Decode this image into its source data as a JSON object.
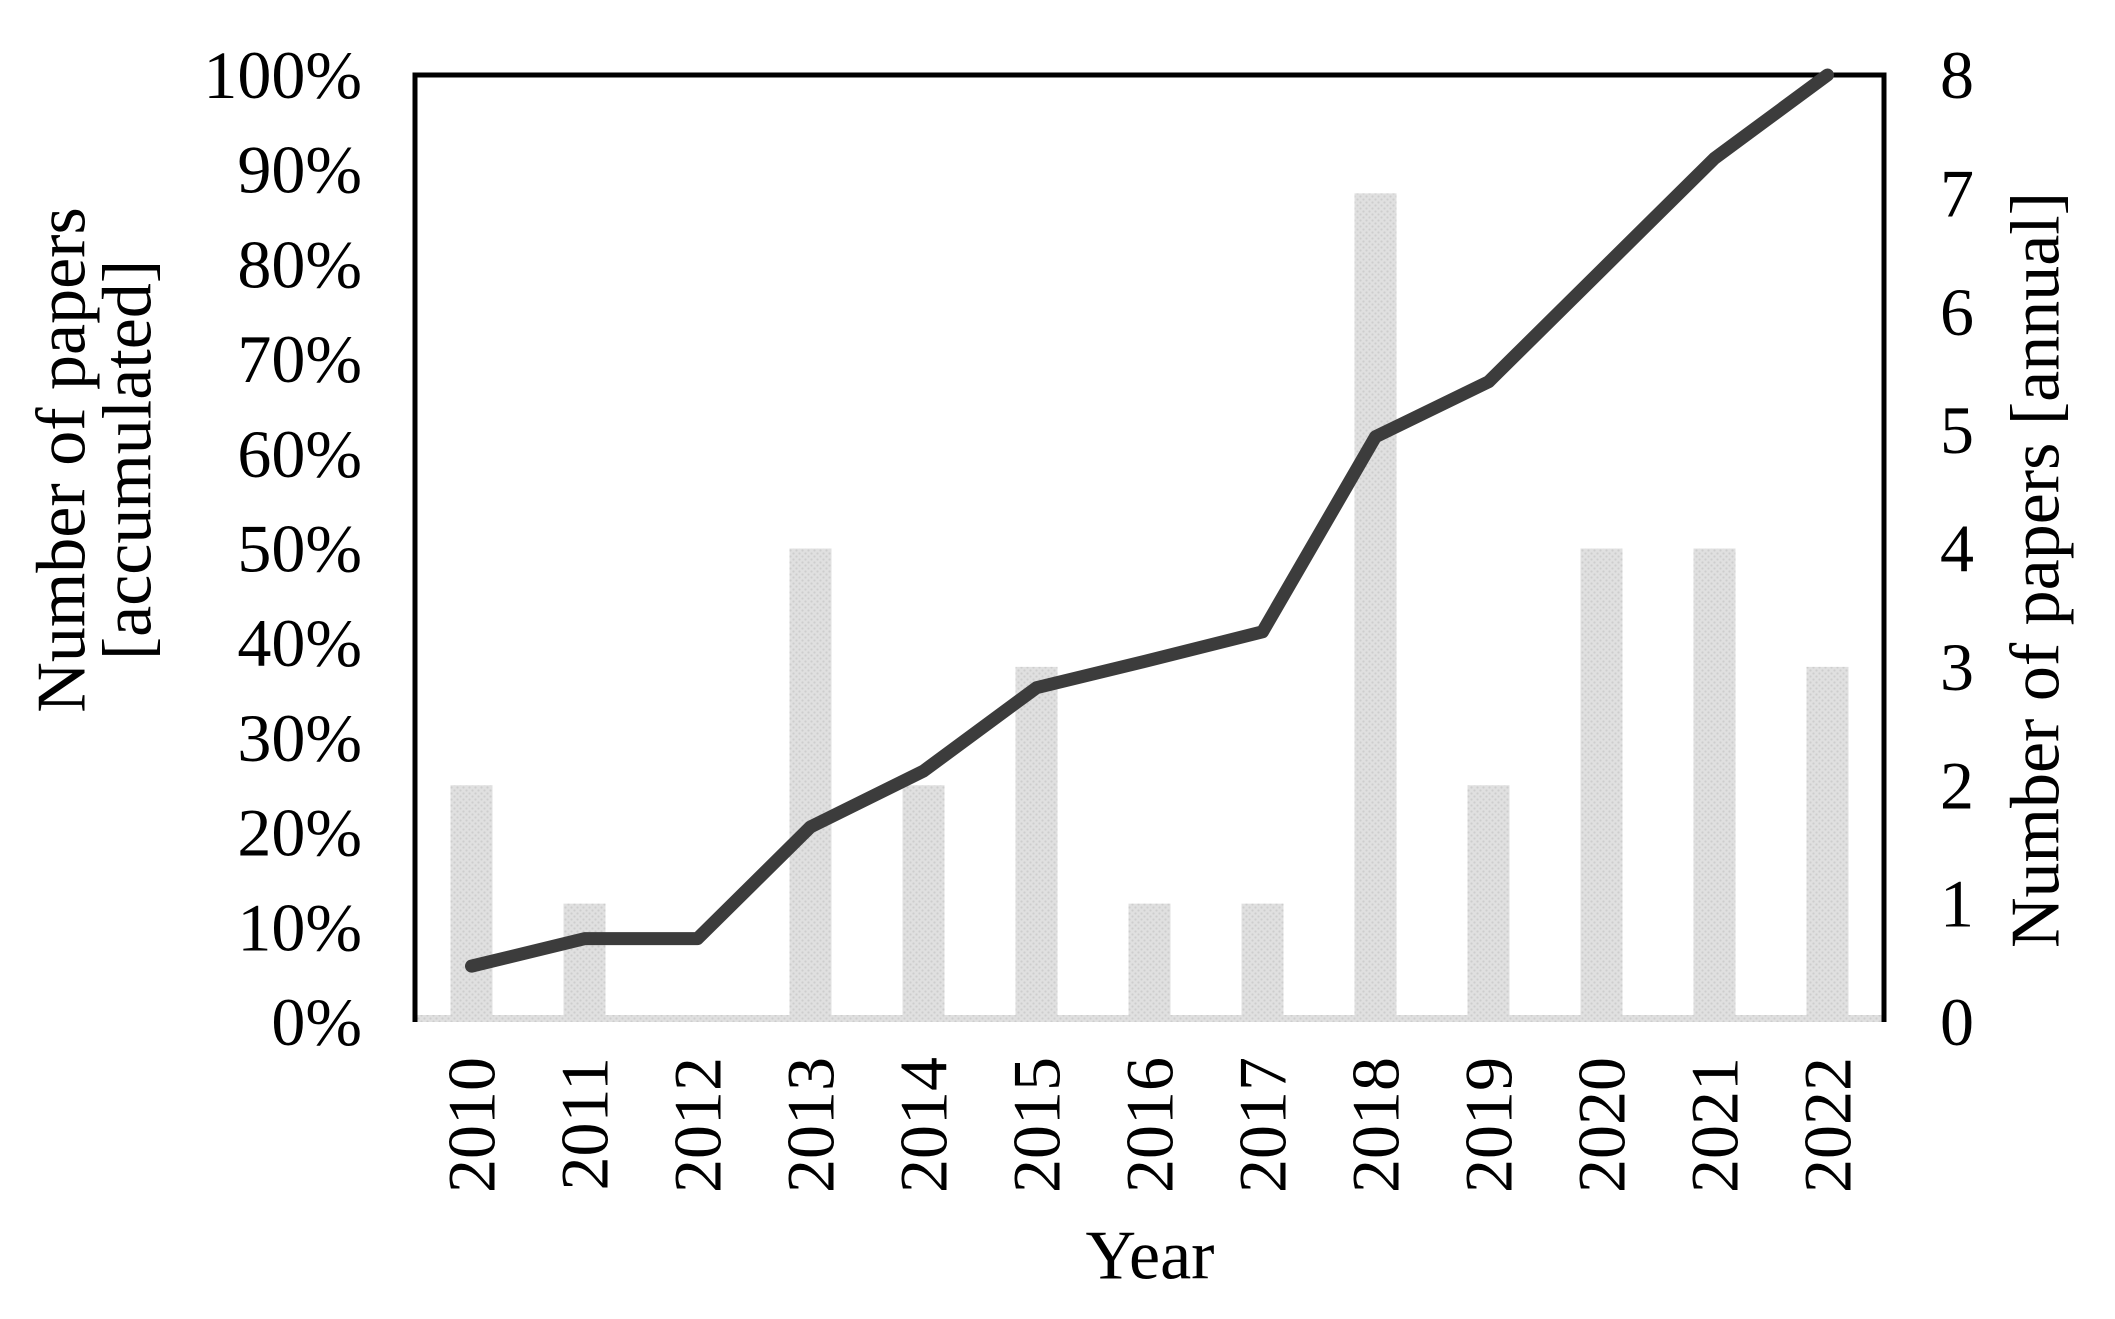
{
  "chart_data": {
    "type": "combo-bar-line",
    "categories": [
      "2010",
      "2011",
      "2012",
      "2013",
      "2014",
      "2015",
      "2016",
      "2017",
      "2018",
      "2019",
      "2020",
      "2021",
      "2022"
    ],
    "series": [
      {
        "name": "Number of papers [annual]",
        "type": "bar",
        "axis": "right",
        "values": [
          2,
          1,
          0,
          4,
          2,
          3,
          1,
          1,
          7,
          2,
          4,
          4,
          3
        ]
      },
      {
        "name": "Number of papers [accumulated]",
        "type": "line",
        "axis": "left",
        "values_percent": [
          5.9,
          8.8,
          8.8,
          20.6,
          26.5,
          35.3,
          38.2,
          41.2,
          61.8,
          67.6,
          79.4,
          91.2,
          100.0
        ]
      }
    ],
    "left_axis": {
      "label_line1": "Number of papers",
      "label_line2": "[accumulated]",
      "tick_labels": [
        "0%",
        "10%",
        "20%",
        "30%",
        "40%",
        "50%",
        "60%",
        "70%",
        "80%",
        "90%",
        "100%"
      ],
      "min": 0,
      "max": 100
    },
    "right_axis": {
      "label": "Number of papers  [annual]",
      "tick_labels": [
        "0",
        "1",
        "2",
        "3",
        "4",
        "5",
        "6",
        "7",
        "8"
      ],
      "min": 0,
      "max": 8
    },
    "x_axis": {
      "label": "Year"
    },
    "grid": false,
    "legend": "none",
    "colors": {
      "bar_fill": "#e0e0e0",
      "bar_dot": "#cdcdcd",
      "line": "#3c3c3c",
      "border": "#000000",
      "text": "#000000",
      "background": "#ffffff"
    }
  }
}
